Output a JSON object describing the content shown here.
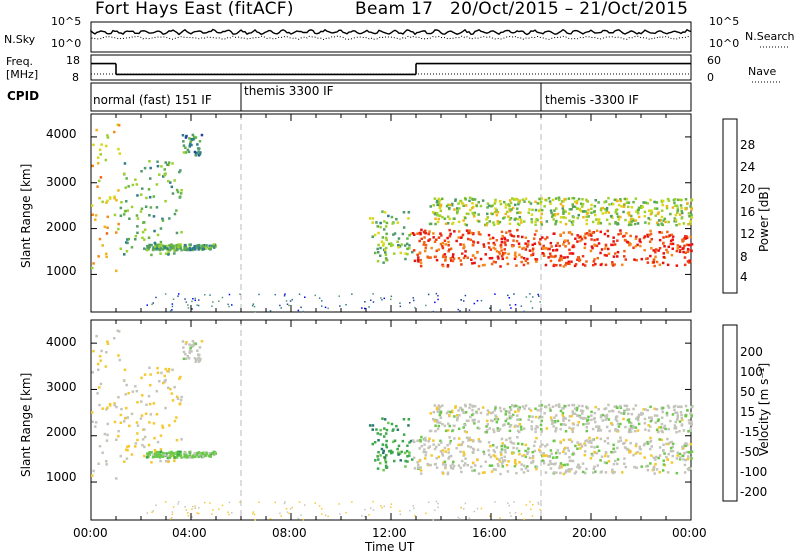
{
  "header": {
    "station": "Fort Hays East (fitACF)",
    "beam": "Beam 17",
    "date_range": "20/Oct/2015 – 21/Oct/2015"
  },
  "noise_panel": {
    "left_label": "N.Sky",
    "right_label": "N.Search",
    "left_ticks": [
      "10^5",
      "10^0"
    ],
    "right_ticks": [
      "10^5",
      "10^0"
    ]
  },
  "freq_panel": {
    "left_label_1": "Freq.",
    "left_label_2": "[MHz]",
    "right_label": "Nave",
    "left_ticks": [
      "18",
      "8"
    ],
    "right_ticks": [
      "60",
      "0"
    ]
  },
  "cpid_panel": {
    "label": "CPID",
    "segments": [
      "normal (fast) 151 IF",
      "themis 3300 IF",
      "themis -3300 IF"
    ]
  },
  "power_panel": {
    "ylabel": "Slant Range [km]",
    "y_ticks": [
      "4000",
      "3000",
      "2000",
      "1000"
    ],
    "colorbar_label": "Power [dB]",
    "colorbar_ticks": [
      "28",
      "24",
      "20",
      "16",
      "12",
      "8",
      "4"
    ],
    "colors": [
      "#0000ff",
      "#22449a",
      "#2c7a8a",
      "#4f9a6a",
      "#62b246",
      "#9ad12c",
      "#d6d91a",
      "#f2b21a",
      "#f58a1a",
      "#f06418",
      "#ee3a14",
      "#e81010"
    ]
  },
  "velocity_panel": {
    "ylabel": "Slant Range [km]",
    "y_ticks": [
      "4000",
      "3000",
      "2000",
      "1000"
    ],
    "colorbar_label": "Velocity [m s⁻¹]",
    "colorbar_ticks": [
      "200",
      "100",
      "50",
      "15",
      "-15",
      "-50",
      "-100",
      "-200"
    ],
    "colors": [
      "#1a20c8",
      "#2e5aa0",
      "#2a7a6a",
      "#3aa84a",
      "#6cc84a",
      "#c4c4bc",
      "#f6c830",
      "#f6a224",
      "#f67a1a",
      "#f24c14",
      "#e81a10"
    ]
  },
  "x_axis": {
    "label": "Time UT",
    "ticks": [
      "00:00",
      "04:00",
      "08:00",
      "12:00",
      "16:00",
      "20:00",
      "00:00"
    ]
  },
  "chart_data": {
    "type": "heatmap",
    "title": "Fort Hays East (fitACF)   Beam 17   20/Oct/2015 – 21/Oct/2015",
    "xlabel": "Time UT",
    "ylabel": "Slant Range [km]",
    "x_range_hours": [
      0,
      24
    ],
    "y_range_km": [
      180,
      4500
    ],
    "cpid_segments": [
      {
        "name": "normal (fast) 151 IF",
        "start": 0,
        "end": 6
      },
      {
        "name": "themis 3300 IF",
        "start": 6,
        "end": 18
      },
      {
        "name": "themis -3300 IF",
        "start": 18,
        "end": 24
      }
    ],
    "freq_mhz": [
      {
        "start": 0,
        "end": 1,
        "value": 16
      },
      {
        "start": 1,
        "end": 13,
        "value": 10
      },
      {
        "start": 13,
        "end": 24,
        "value": 16
      }
    ],
    "scatter_regions": [
      {
        "start": 0.0,
        "end": 1.1,
        "range_lo": 1100,
        "range_hi": 4300,
        "power_db": 18,
        "velocity": -15
      },
      {
        "start": 1.1,
        "end": 3.6,
        "range_lo": 1450,
        "range_hi": 3500,
        "power_db": 10,
        "velocity": -30
      },
      {
        "start": 3.6,
        "end": 4.4,
        "range_lo": 3600,
        "range_hi": 4100,
        "power_db": 8,
        "velocity": 0
      },
      {
        "start": 2.1,
        "end": 5.0,
        "range_lo": 1550,
        "range_hi": 1680,
        "power_db": 10,
        "velocity": 40
      },
      {
        "start": 11.1,
        "end": 12.8,
        "range_lo": 1250,
        "range_hi": 2400,
        "power_db": 12,
        "velocity": 80
      },
      {
        "start": 12.8,
        "end": 24.0,
        "range_lo": 1200,
        "range_hi": 2000,
        "power_db": 26,
        "velocity": 0
      },
      {
        "start": 13.5,
        "end": 24.0,
        "range_lo": 2100,
        "range_hi": 2700,
        "power_db": 14,
        "velocity": 5
      }
    ],
    "power_db_range": [
      0,
      30
    ],
    "velocity_range": [
      -200,
      200
    ]
  }
}
